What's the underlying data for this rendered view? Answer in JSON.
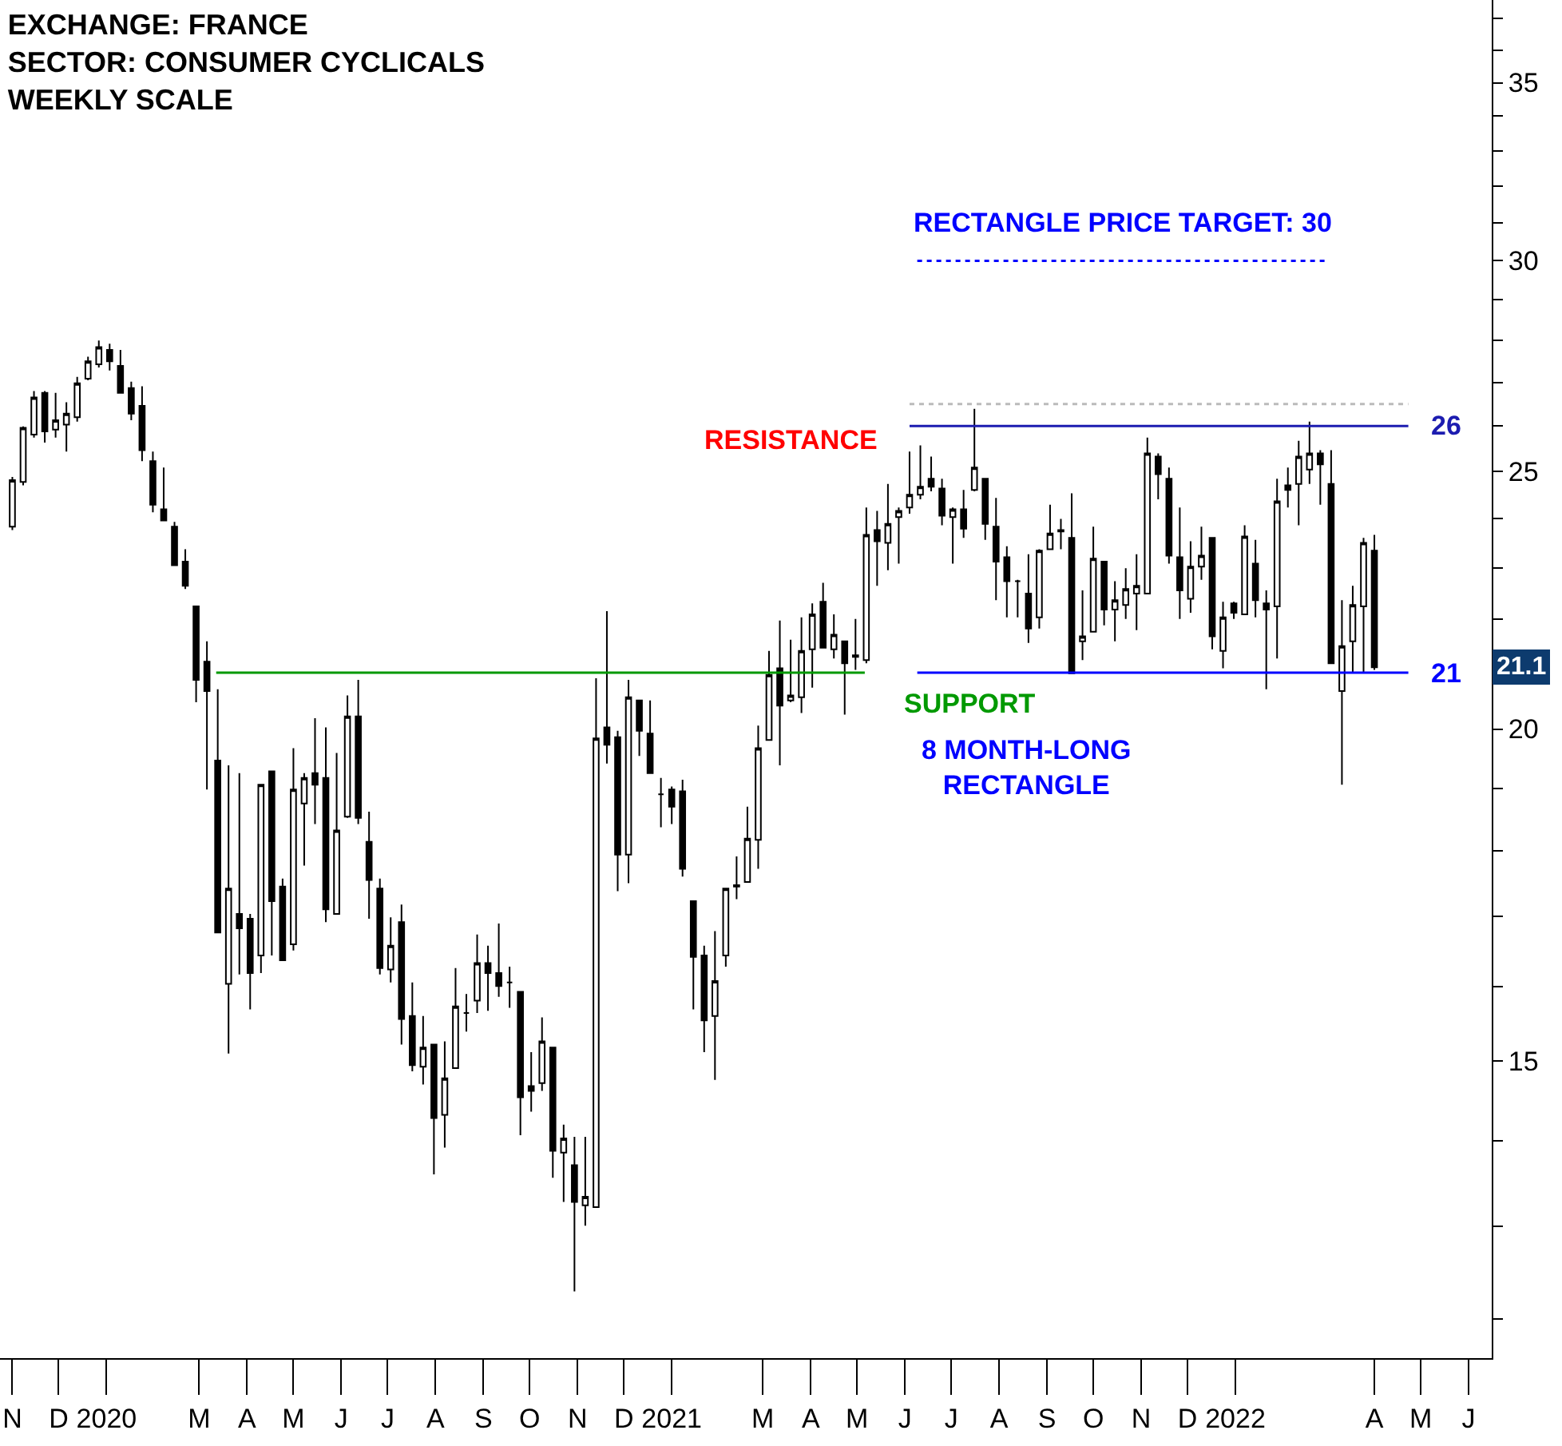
{
  "chart_data": {
    "type": "candlestick",
    "title": "EXCHANGE: FRANCE\nSECTOR: CONSUMER CYCLICALS\nWEEKLY SCALE",
    "color": "#000000",
    "x": [
      "2019-11-01",
      "2019-11-08",
      "2019-11-15",
      "2019-11-22",
      "2019-11-29",
      "2019-12-06",
      "2019-12-13",
      "2019-12-20",
      "2019-12-27",
      "2020-01-03",
      "2020-01-10",
      "2020-01-17",
      "2020-01-24",
      "2020-01-31",
      "2020-02-07",
      "2020-02-14",
      "2020-02-21",
      "2020-02-28",
      "2020-03-06",
      "2020-03-13",
      "2020-03-20",
      "2020-03-27",
      "2020-04-03",
      "2020-04-10",
      "2020-04-17",
      "2020-04-24",
      "2020-05-01",
      "2020-05-08",
      "2020-05-15",
      "2020-05-22",
      "2020-05-29",
      "2020-06-05",
      "2020-06-12",
      "2020-06-19",
      "2020-06-26",
      "2020-07-03",
      "2020-07-10",
      "2020-07-17",
      "2020-07-24",
      "2020-07-31",
      "2020-08-07",
      "2020-08-14",
      "2020-08-21",
      "2020-08-28",
      "2020-09-04",
      "2020-09-11",
      "2020-09-18",
      "2020-09-25",
      "2020-10-02",
      "2020-10-09",
      "2020-10-16",
      "2020-10-23",
      "2020-10-30",
      "2020-11-06",
      "2020-11-13",
      "2020-11-20",
      "2020-11-27",
      "2020-12-04",
      "2020-12-11",
      "2020-12-18",
      "2020-12-25",
      "2021-01-01",
      "2021-01-08",
      "2021-01-15",
      "2021-01-22",
      "2021-01-29",
      "2021-02-05",
      "2021-02-12",
      "2021-02-19",
      "2021-02-26",
      "2021-03-05",
      "2021-03-12",
      "2021-03-19",
      "2021-03-26",
      "2021-04-02",
      "2021-04-09",
      "2021-04-16",
      "2021-04-23",
      "2021-04-30",
      "2021-05-07",
      "2021-05-14",
      "2021-05-21",
      "2021-05-28",
      "2021-06-04",
      "2021-06-11",
      "2021-06-18",
      "2021-06-25",
      "2021-07-02",
      "2021-07-09",
      "2021-07-16",
      "2021-07-23",
      "2021-07-30",
      "2021-08-06",
      "2021-08-13",
      "2021-08-20",
      "2021-08-27",
      "2021-09-03",
      "2021-09-10",
      "2021-09-17",
      "2021-09-24",
      "2021-10-01",
      "2021-10-08",
      "2021-10-15",
      "2021-10-22",
      "2021-10-29",
      "2021-11-05",
      "2021-11-12",
      "2021-11-19",
      "2021-11-26",
      "2021-12-03",
      "2021-12-10",
      "2021-12-17",
      "2021-12-24",
      "2021-12-31",
      "2022-01-07",
      "2022-01-14",
      "2022-01-21",
      "2022-01-28",
      "2022-02-04",
      "2022-02-11",
      "2022-02-18",
      "2022-02-25",
      "2022-03-04",
      "2022-03-11",
      "2022-03-18",
      "2022-03-25",
      "2022-04-01"
    ],
    "ohlc": [
      [
        23.83,
        24.88,
        23.76,
        24.81
      ],
      [
        24.77,
        25.99,
        24.7,
        25.96
      ],
      [
        25.81,
        26.8,
        25.74,
        26.65
      ],
      [
        26.76,
        26.8,
        25.63,
        25.88
      ],
      [
        25.92,
        26.76,
        25.74,
        26.13
      ],
      [
        26.03,
        26.54,
        25.43,
        26.28
      ],
      [
        26.2,
        27.13,
        26.1,
        26.98
      ],
      [
        27.09,
        27.61,
        27.05,
        27.5
      ],
      [
        27.43,
        28.0,
        27.35,
        27.84
      ],
      [
        27.77,
        27.92,
        27.28,
        27.5
      ],
      [
        27.39,
        27.77,
        26.76,
        26.76
      ],
      [
        26.87,
        27.02,
        26.13,
        26.28
      ],
      [
        26.46,
        26.91,
        25.22,
        25.46
      ],
      [
        25.22,
        25.43,
        24.13,
        24.29
      ],
      [
        24.19,
        25.08,
        23.96,
        23.96
      ],
      [
        23.83,
        23.93,
        23.05,
        23.05
      ],
      [
        23.12,
        23.37,
        22.58,
        22.64
      ],
      [
        22.24,
        22.24,
        20.47,
        20.87
      ],
      [
        21.2,
        21.58,
        18.98,
        20.67
      ],
      [
        19.46,
        20.7,
        16.77,
        16.77
      ],
      [
        16.04,
        19.38,
        15.1,
        17.42
      ],
      [
        17.04,
        19.25,
        16.17,
        16.83
      ],
      [
        16.97,
        17.04,
        15.69,
        16.19
      ],
      [
        16.44,
        19.06,
        16.19,
        19.06
      ],
      [
        19.28,
        19.28,
        16.44,
        17.23
      ],
      [
        17.45,
        17.57,
        16.37,
        16.37
      ],
      [
        16.6,
        19.67,
        16.51,
        18.98
      ],
      [
        18.75,
        19.25,
        17.77,
        19.17
      ],
      [
        19.25,
        20.19,
        18.42,
        19.06
      ],
      [
        19.17,
        20.03,
        16.92,
        17.11
      ],
      [
        17.04,
        19.59,
        17.04,
        18.32
      ],
      [
        18.54,
        20.59,
        18.52,
        20.22
      ],
      [
        20.22,
        20.87,
        18.42,
        18.52
      ],
      [
        18.14,
        18.62,
        16.97,
        17.55
      ],
      [
        17.42,
        17.57,
        16.17,
        16.26
      ],
      [
        16.24,
        16.99,
        16.06,
        16.58
      ],
      [
        16.92,
        17.18,
        15.22,
        15.56
      ],
      [
        15.6,
        16.06,
        14.87,
        14.95
      ],
      [
        14.93,
        15.6,
        14.7,
        15.18
      ],
      [
        15.22,
        15.22,
        13.6,
        14.28
      ],
      [
        14.32,
        15.26,
        13.92,
        14.78
      ],
      [
        14.91,
        16.26,
        14.91,
        15.73
      ],
      [
        15.64,
        15.9,
        15.39,
        15.64
      ],
      [
        15.81,
        16.74,
        15.64,
        16.33
      ],
      [
        16.33,
        16.58,
        15.67,
        16.19
      ],
      [
        16.19,
        16.9,
        15.86,
        16.01
      ],
      [
        16.06,
        16.28,
        15.71,
        16.06
      ],
      [
        15.93,
        15.93,
        14.07,
        14.54
      ],
      [
        14.68,
        15.12,
        14.36,
        14.62
      ],
      [
        14.72,
        15.58,
        14.62,
        15.26
      ],
      [
        15.18,
        15.18,
        13.56,
        13.88
      ],
      [
        13.86,
        14.2,
        13.28,
        14.03
      ],
      [
        13.71,
        14.05,
        12.29,
        13.28
      ],
      [
        13.24,
        14.05,
        13.01,
        13.34
      ],
      [
        13.22,
        20.9,
        13.21,
        19.84
      ],
      [
        20.03,
        22.15,
        19.41,
        19.73
      ],
      [
        19.86,
        19.97,
        17.38,
        17.94
      ],
      [
        17.94,
        20.87,
        17.5,
        20.56
      ],
      [
        20.5,
        20.5,
        19.54,
        19.97
      ],
      [
        19.92,
        20.5,
        19.25,
        19.25
      ],
      [
        18.9,
        19.17,
        18.37,
        18.9
      ],
      [
        18.98,
        19.03,
        18.42,
        18.7
      ],
      [
        18.95,
        19.14,
        17.6,
        17.72
      ],
      [
        17.23,
        17.23,
        15.69,
        16.42
      ],
      [
        16.44,
        16.58,
        15.12,
        15.54
      ],
      [
        15.6,
        16.79,
        14.76,
        16.08
      ],
      [
        16.44,
        17.42,
        16.28,
        17.42
      ],
      [
        17.45,
        17.91,
        17.26,
        17.47
      ],
      [
        17.52,
        18.7,
        17.52,
        18.19
      ],
      [
        18.17,
        20.06,
        17.72,
        19.67
      ],
      [
        19.81,
        21.4,
        19.81,
        20.96
      ],
      [
        21.08,
        21.97,
        19.38,
        20.41
      ],
      [
        20.5,
        21.61,
        20.47,
        20.59
      ],
      [
        20.56,
        22.03,
        20.28,
        21.4
      ],
      [
        21.43,
        22.3,
        20.73,
        22.09
      ],
      [
        22.33,
        22.7,
        21.46,
        21.46
      ],
      [
        21.43,
        22.09,
        21.26,
        21.7
      ],
      [
        21.58,
        21.58,
        20.25,
        21.17
      ],
      [
        21.29,
        22.0,
        21.05,
        21.32
      ],
      [
        21.23,
        24.23,
        21.17,
        23.66
      ],
      [
        23.76,
        24.16,
        22.64,
        23.53
      ],
      [
        23.5,
        24.73,
        22.95,
        23.89
      ],
      [
        24.03,
        24.23,
        23.08,
        24.16
      ],
      [
        24.23,
        25.43,
        24.1,
        24.5
      ],
      [
        24.5,
        25.57,
        24.4,
        24.67
      ],
      [
        24.84,
        25.32,
        24.57,
        24.67
      ],
      [
        24.63,
        24.84,
        23.86,
        24.06
      ],
      [
        24.03,
        24.23,
        23.08,
        24.19
      ],
      [
        24.19,
        24.6,
        23.6,
        23.79
      ],
      [
        24.6,
        26.39,
        24.57,
        25.08
      ],
      [
        24.84,
        24.84,
        23.56,
        23.89
      ],
      [
        23.83,
        24.43,
        22.36,
        23.12
      ],
      [
        23.21,
        23.43,
        22.03,
        22.73
      ],
      [
        22.73,
        22.76,
        22.03,
        22.73
      ],
      [
        22.49,
        23.27,
        21.55,
        21.82
      ],
      [
        22.03,
        23.37,
        21.82,
        23.34
      ],
      [
        23.37,
        24.29,
        23.37,
        23.69
      ],
      [
        23.73,
        23.99,
        23.37,
        23.76
      ],
      [
        23.6,
        24.53,
        20.99,
        20.99
      ],
      [
        21.58,
        22.55,
        21.23,
        21.67
      ],
      [
        21.76,
        23.83,
        21.76,
        23.18
      ],
      [
        23.12,
        23.12,
        21.88,
        22.18
      ],
      [
        22.18,
        22.73,
        21.58,
        22.36
      ],
      [
        22.27,
        22.99,
        22.0,
        22.58
      ],
      [
        22.49,
        23.27,
        21.79,
        22.64
      ],
      [
        22.49,
        25.74,
        22.49,
        25.39
      ],
      [
        25.32,
        25.39,
        24.4,
        24.94
      ],
      [
        24.84,
        25.08,
        23.08,
        23.24
      ],
      [
        23.21,
        24.23,
        22.0,
        22.55
      ],
      [
        22.39,
        23.53,
        22.12,
        23.02
      ],
      [
        23.02,
        23.83,
        22.76,
        23.24
      ],
      [
        23.6,
        23.6,
        21.43,
        21.67
      ],
      [
        21.4,
        22.33,
        21.08,
        22.03
      ],
      [
        22.3,
        22.33,
        22.0,
        22.12
      ],
      [
        22.09,
        23.86,
        22.09,
        23.63
      ],
      [
        23.08,
        23.56,
        22.03,
        22.36
      ],
      [
        22.3,
        22.55,
        20.7,
        22.18
      ],
      [
        22.24,
        24.84,
        21.26,
        24.36
      ],
      [
        24.7,
        25.08,
        24.23,
        24.6
      ],
      [
        24.73,
        25.67,
        23.86,
        25.32
      ],
      [
        25.04,
        26.1,
        24.73,
        25.39
      ],
      [
        25.39,
        25.46,
        24.29,
        25.15
      ],
      [
        24.73,
        25.46,
        21.17,
        21.17
      ],
      [
        20.67,
        22.36,
        19.06,
        21.49
      ],
      [
        21.58,
        22.64,
        20.99,
        22.27
      ],
      [
        22.24,
        23.6,
        20.99,
        23.5
      ],
      [
        23.34,
        23.66,
        21.05,
        21.1
      ]
    ],
    "series": [
      {
        "type": "line",
        "color": "#009900",
        "x": [
          "2020-03-12",
          "2021-05-06"
        ],
        "values": [
          21,
          21
        ]
      },
      {
        "type": "line",
        "name": "21",
        "color": "#0000ff",
        "x": [
          "2021-06-09",
          "2022-04-23"
        ],
        "values": [
          21,
          21
        ]
      },
      {
        "type": "line",
        "name": "26",
        "color": "#1c1cb0",
        "x": [
          "2021-06-04",
          "2022-04-23"
        ],
        "values": [
          26,
          26
        ]
      },
      {
        "type": "line",
        "color": "#bbbbbb",
        "line_style": "dotted",
        "x": [
          "2021-06-04",
          "2022-04-23"
        ],
        "values": [
          26.5,
          26.5
        ]
      },
      {
        "type": "line",
        "name": "RECTANGLE PRICE TARGET: 30",
        "color": "#0000ff",
        "line_style": "dotted",
        "x": [
          "2021-06-09",
          "2022-03-02"
        ],
        "values": [
          30,
          30
        ]
      }
    ],
    "annotations": [
      "RESISTANCE",
      "SUPPORT",
      "8 MONTH-LONG\nRECTANGLE",
      {
        "text": "21.1",
        "y": 21.1
      }
    ],
    "log": "y",
    "xlim": [
      "2019-10-24",
      "2022-06-16"
    ],
    "xticks": [
      {
        "value": "2019-11-01",
        "label": "N"
      },
      {
        "value": "2019-12-01",
        "label": "D"
      },
      {
        "value": "2020-01-01",
        "label": "2020"
      },
      {
        "value": "2020-03-01",
        "label": "M"
      },
      {
        "value": "2020-04-01",
        "label": "A"
      },
      {
        "value": "2020-05-01",
        "label": "M"
      },
      {
        "value": "2020-06-01",
        "label": "J"
      },
      {
        "value": "2020-07-01",
        "label": "J"
      },
      {
        "value": "2020-08-01",
        "label": "A"
      },
      {
        "value": "2020-09-01",
        "label": "S"
      },
      {
        "value": "2020-10-01",
        "label": "O"
      },
      {
        "value": "2020-11-01",
        "label": "N"
      },
      {
        "value": "2020-12-01",
        "label": "D"
      },
      {
        "value": "2021-01-01",
        "label": "2021"
      },
      {
        "value": "2021-03-01",
        "label": "M"
      },
      {
        "value": "2021-04-01",
        "label": "A"
      },
      {
        "value": "2021-05-01",
        "label": "M"
      },
      {
        "value": "2021-06-01",
        "label": "J"
      },
      {
        "value": "2021-07-01",
        "label": "J"
      },
      {
        "value": "2021-08-01",
        "label": "A"
      },
      {
        "value": "2021-09-01",
        "label": "S"
      },
      {
        "value": "2021-10-01",
        "label": "O"
      },
      {
        "value": "2021-11-01",
        "label": "N"
      },
      {
        "value": "2021-12-01",
        "label": "D"
      },
      {
        "value": "2022-01-01",
        "label": "2022"
      },
      {
        "value": "2022-04-01",
        "label": "A"
      },
      {
        "value": "2022-05-01",
        "label": "M"
      },
      {
        "value": "2022-06-01",
        "label": "J"
      }
    ],
    "ylim": [
      11.6,
      37.6
    ],
    "yticks": [
      {
        "value": 12,
        "label": null
      },
      {
        "value": 13,
        "label": null
      },
      {
        "value": 14,
        "label": null
      },
      15,
      {
        "value": 16,
        "label": null
      },
      {
        "value": 17,
        "label": null
      },
      {
        "value": 18,
        "label": null
      },
      {
        "value": 19,
        "label": null
      },
      20,
      {
        "value": 21,
        "label": null
      },
      {
        "value": 22,
        "label": null
      },
      {
        "value": 23,
        "label": null
      },
      {
        "value": 24,
        "label": null
      },
      25,
      {
        "value": 26,
        "label": null
      },
      {
        "value": 27,
        "label": null
      },
      {
        "value": 28,
        "label": null
      },
      {
        "value": 29,
        "label": null
      },
      30,
      {
        "value": 31,
        "label": null
      },
      {
        "value": 32,
        "label": null
      },
      {
        "value": 33,
        "label": null
      },
      {
        "value": 34,
        "label": null
      },
      35,
      {
        "value": 36,
        "label": null
      },
      {
        "value": 37,
        "label": null
      }
    ],
    "legend": false
  }
}
